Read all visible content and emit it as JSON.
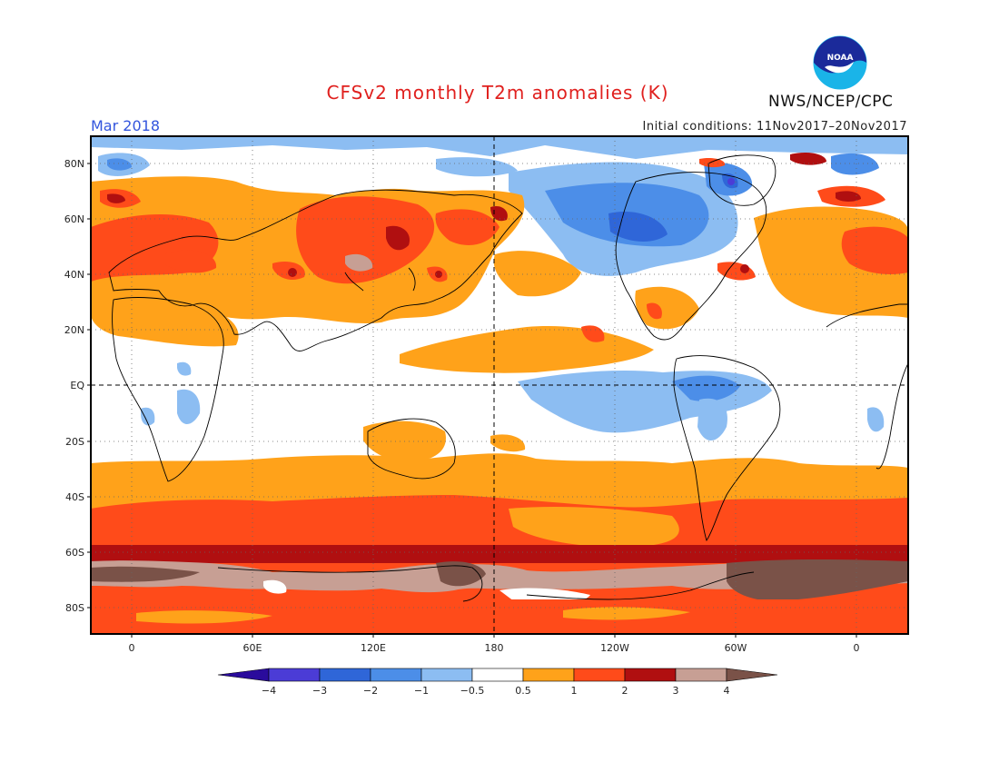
{
  "header": {
    "title": "CFSv2 monthly T2m anomalies (K)",
    "month": "Mar 2018",
    "initial_conditions": "Initial conditions: 11Nov2017–20Nov2017",
    "agency": "NWS/NCEP/CPC",
    "logo_text": "NOAA"
  },
  "map": {
    "lat_labels": [
      "80N",
      "60N",
      "40N",
      "20N",
      "EQ",
      "20S",
      "40S",
      "60S",
      "80S"
    ],
    "lon_labels": [
      "0",
      "60E",
      "120E",
      "180",
      "120W",
      "60W",
      "0"
    ]
  },
  "colorbar": {
    "labels": [
      "−4",
      "−3",
      "−2",
      "−1",
      "−0.5",
      "0.5",
      "1",
      "2",
      "3",
      "4"
    ],
    "colors": [
      "#2a0b9c",
      "#4b3cd6",
      "#2f66d8",
      "#4c8ee8",
      "#8cbdf2",
      "#ffffff",
      "#ffa21a",
      "#ff4b1a",
      "#b00f10",
      "#c79f94",
      "#7a5248"
    ]
  },
  "colors": {
    "title": "#e0201e",
    "month": "#3355dd",
    "ocean_land_default": "#ffffff",
    "frame": "#000000"
  }
}
